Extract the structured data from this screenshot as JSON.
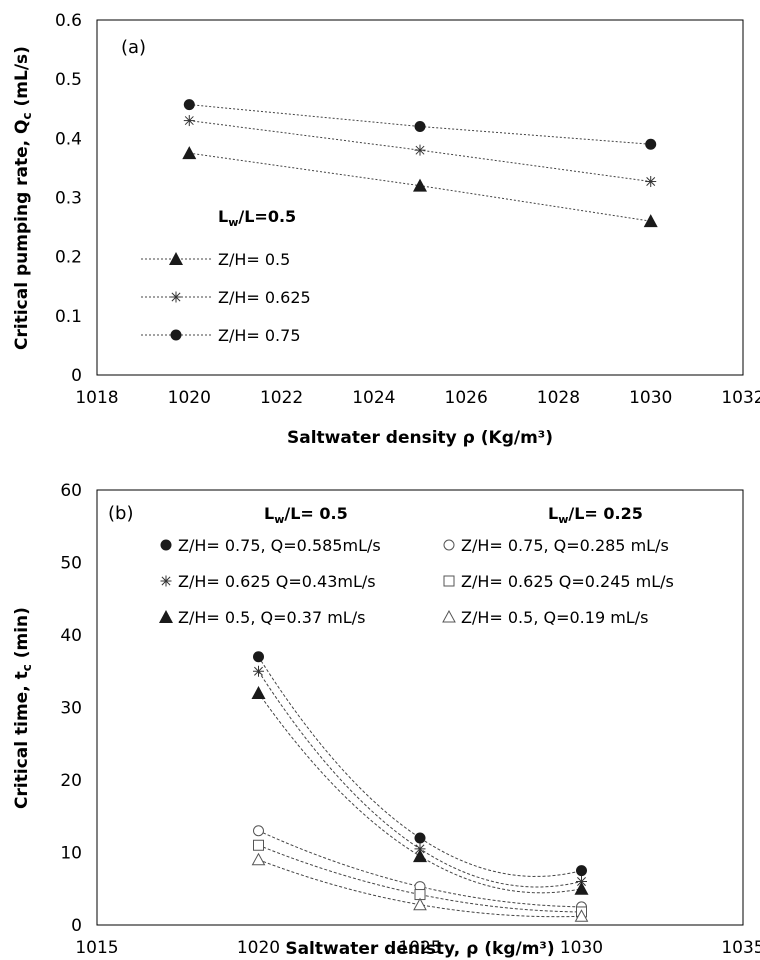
{
  "chart_data": [
    {
      "type": "line",
      "panel_label": "(a)",
      "xlabel": "Saltwater density ρ (Kg/m³)",
      "ylabel": "Critical pumping rate, Qc (mL/s)",
      "ylabel_main": "Critical pumping rate, Q",
      "ylabel_sub": "c",
      "ylabel_unit": " (mL/s)",
      "xlim": [
        1018,
        1032
      ],
      "ylim": [
        0,
        0.6
      ],
      "xticks": [
        "1018",
        "1020",
        "1022",
        "1024",
        "1026",
        "1028",
        "1030",
        "1032"
      ],
      "yticks": [
        "0",
        "0.1",
        "0.2",
        "0.3",
        "0.4",
        "0.5",
        "0.6"
      ],
      "legend_title": "Lw/L=0.5",
      "legend_title_main": "L",
      "legend_title_sub": "w",
      "legend_title_rest": "/L=0.5",
      "legend_placement": "left",
      "grid": false,
      "series": [
        {
          "name": "Z/H= 0.5",
          "marker": "triangle",
          "x": [
            1020,
            1025,
            1030
          ],
          "values": [
            0.375,
            0.32,
            0.26
          ]
        },
        {
          "name": "Z/H= 0.625",
          "marker": "asterisk",
          "x": [
            1020,
            1025,
            1030
          ],
          "values": [
            0.43,
            0.38,
            0.327
          ]
        },
        {
          "name": "Z/H= 0.75",
          "marker": "circle",
          "x": [
            1020,
            1025,
            1030
          ],
          "values": [
            0.457,
            0.42,
            0.39
          ]
        }
      ]
    },
    {
      "type": "scatter",
      "panel_label": "(b)",
      "xlabel": "Saltwater denisty, ρ (kg/m³)",
      "ylabel": "Critical time, tc (min)",
      "ylabel_main": "Critical time, t",
      "ylabel_sub": "c",
      "ylabel_unit": " (min)",
      "xlim": [
        1015,
        1035
      ],
      "ylim": [
        0,
        60
      ],
      "xticks": [
        "1015",
        "1020",
        "1025",
        "1030",
        "1035"
      ],
      "yticks": [
        "0",
        "10",
        "20",
        "30",
        "40",
        "50",
        "60"
      ],
      "legend_group_left": "Lw/L= 0.5",
      "legend_group_left_main": "L",
      "legend_group_left_sub": "w",
      "legend_group_left_rest": "/L= 0.5",
      "legend_group_right": "Lw/L= 0.25",
      "legend_group_right_main": "L",
      "legend_group_right_sub": "w",
      "legend_group_right_rest": "/L= 0.25",
      "legend_placement": "top",
      "grid": false,
      "trendline": "polynomial",
      "series": [
        {
          "name": "Z/H= 0.75, Q=0.585mL/s",
          "marker": "circle",
          "x": [
            1020,
            1025,
            1030
          ],
          "values": [
            37,
            12,
            7.5
          ]
        },
        {
          "name": "Z/H= 0.625 Q=0.43mL/s",
          "marker": "asterisk",
          "x": [
            1020,
            1025,
            1030
          ],
          "values": [
            35,
            10.5,
            6
          ]
        },
        {
          "name": "Z/H= 0.5, Q=0.37 mL/s",
          "marker": "triangle",
          "x": [
            1020,
            1025,
            1030
          ],
          "values": [
            32,
            9.5,
            5
          ]
        },
        {
          "name": "Z/H= 0.75, Q=0.285 mL/s",
          "marker": "circle-open",
          "x": [
            1020,
            1025,
            1030
          ],
          "values": [
            13,
            5.3,
            2.5
          ]
        },
        {
          "name": "Z/H= 0.625 Q=0.245 mL/s",
          "marker": "square-open",
          "x": [
            1020,
            1025,
            1030
          ],
          "values": [
            11,
            4.2,
            1.8
          ]
        },
        {
          "name": "Z/H= 0.5, Q=0.19 mL/s",
          "marker": "triangle-open",
          "x": [
            1020,
            1025,
            1030
          ],
          "values": [
            9,
            2.8,
            1.2
          ]
        }
      ]
    }
  ]
}
